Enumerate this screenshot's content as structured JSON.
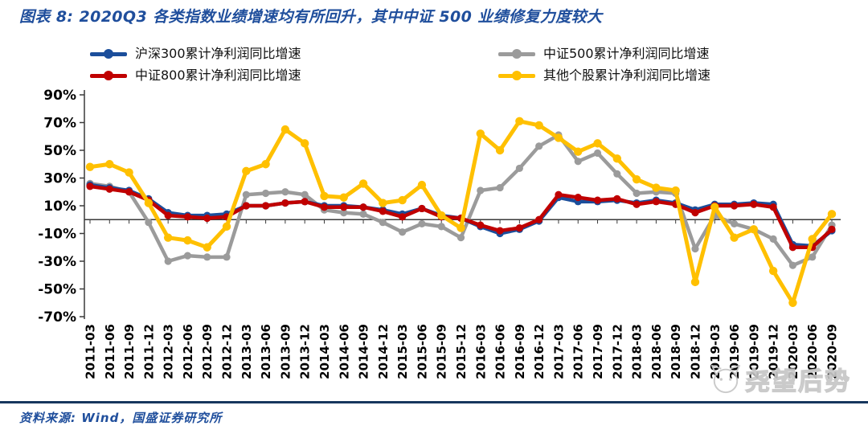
{
  "title": "图表 8: 2020Q3 各类指数业绩增速均有所回升，其中中证 500 业绩修复力度较大",
  "source_note": "资料来源: Wind，国盛证券研究所",
  "watermark": {
    "text": "尧望后势"
  },
  "colors": {
    "title_blue": "#1F4E9C",
    "divider_navy": "#17375E",
    "axis_black": "#3a3a3a",
    "watermark_gray": "#c6c6c6"
  },
  "chart_data": {
    "type": "line",
    "grid": false,
    "legend_position": "top",
    "ylim": [
      -70,
      90
    ],
    "y_ticks": [
      90,
      70,
      50,
      30,
      10,
      -10,
      -30,
      -50,
      -70
    ],
    "y_tick_labels": [
      "90%",
      "70%",
      "50%",
      "30%",
      "10%",
      "-10%",
      "-30%",
      "-50%",
      "-70%"
    ],
    "x_labels": [
      "2011-03",
      "2011-06",
      "2011-09",
      "2011-12",
      "2012-03",
      "2012-06",
      "2012-09",
      "2012-12",
      "2013-03",
      "2013-06",
      "2013-09",
      "2013-12",
      "2014-03",
      "2014-06",
      "2014-09",
      "2014-12",
      "2015-03",
      "2015-06",
      "2015-09",
      "2015-12",
      "2016-03",
      "2016-06",
      "2016-09",
      "2016-12",
      "2017-03",
      "2017-06",
      "2017-09",
      "2017-12",
      "2018-03",
      "2018-06",
      "2018-09",
      "2018-12",
      "2019-03",
      "2019-06",
      "2019-09",
      "2019-12",
      "2020-03",
      "2020-06",
      "2020-09"
    ],
    "series": [
      {
        "name": "沪深300累计净利润同比增速",
        "color": "#1B4E9B",
        "values": [
          25,
          23,
          21,
          15,
          5,
          3,
          3,
          4,
          10,
          10,
          12,
          13,
          10,
          10,
          9,
          7,
          4,
          8,
          3,
          1,
          -5,
          -10,
          -7,
          -1,
          16,
          13,
          13,
          14,
          12,
          14,
          12,
          7,
          11,
          11,
          12,
          11,
          -18,
          -19,
          -8
        ]
      },
      {
        "name": "中证500累计净利润同比增速",
        "color": "#9B9B9B",
        "values": [
          26,
          24,
          20,
          -2,
          -30,
          -26,
          -27,
          -27,
          18,
          19,
          20,
          18,
          7,
          5,
          4,
          -2,
          -9,
          -3,
          -5,
          -13,
          21,
          23,
          37,
          53,
          61,
          42,
          48,
          33,
          19,
          20,
          19,
          -21,
          3,
          -3,
          -7,
          -14,
          -33,
          -27,
          -4
        ]
      },
      {
        "name": "中证800累计净利润同比增速",
        "color": "#C00000",
        "values": [
          24,
          22,
          20,
          14,
          3,
          2,
          1,
          2,
          10,
          10,
          12,
          13,
          9,
          9,
          9,
          6,
          2,
          8,
          2,
          1,
          -4,
          -8,
          -6,
          0,
          18,
          16,
          14,
          15,
          11,
          13,
          11,
          5,
          10,
          10,
          11,
          9,
          -20,
          -20,
          -7
        ]
      },
      {
        "name": "其他个股累计净利润同比增速",
        "color": "#FFC000",
        "values": [
          38,
          40,
          34,
          12,
          -13,
          -15,
          -20,
          -5,
          35,
          40,
          65,
          55,
          17,
          16,
          26,
          12,
          14,
          25,
          3,
          -6,
          62,
          50,
          71,
          68,
          59,
          49,
          55,
          44,
          29,
          23,
          21,
          -45,
          9,
          -13,
          -7,
          -37,
          -60,
          -14,
          4
        ]
      }
    ]
  }
}
